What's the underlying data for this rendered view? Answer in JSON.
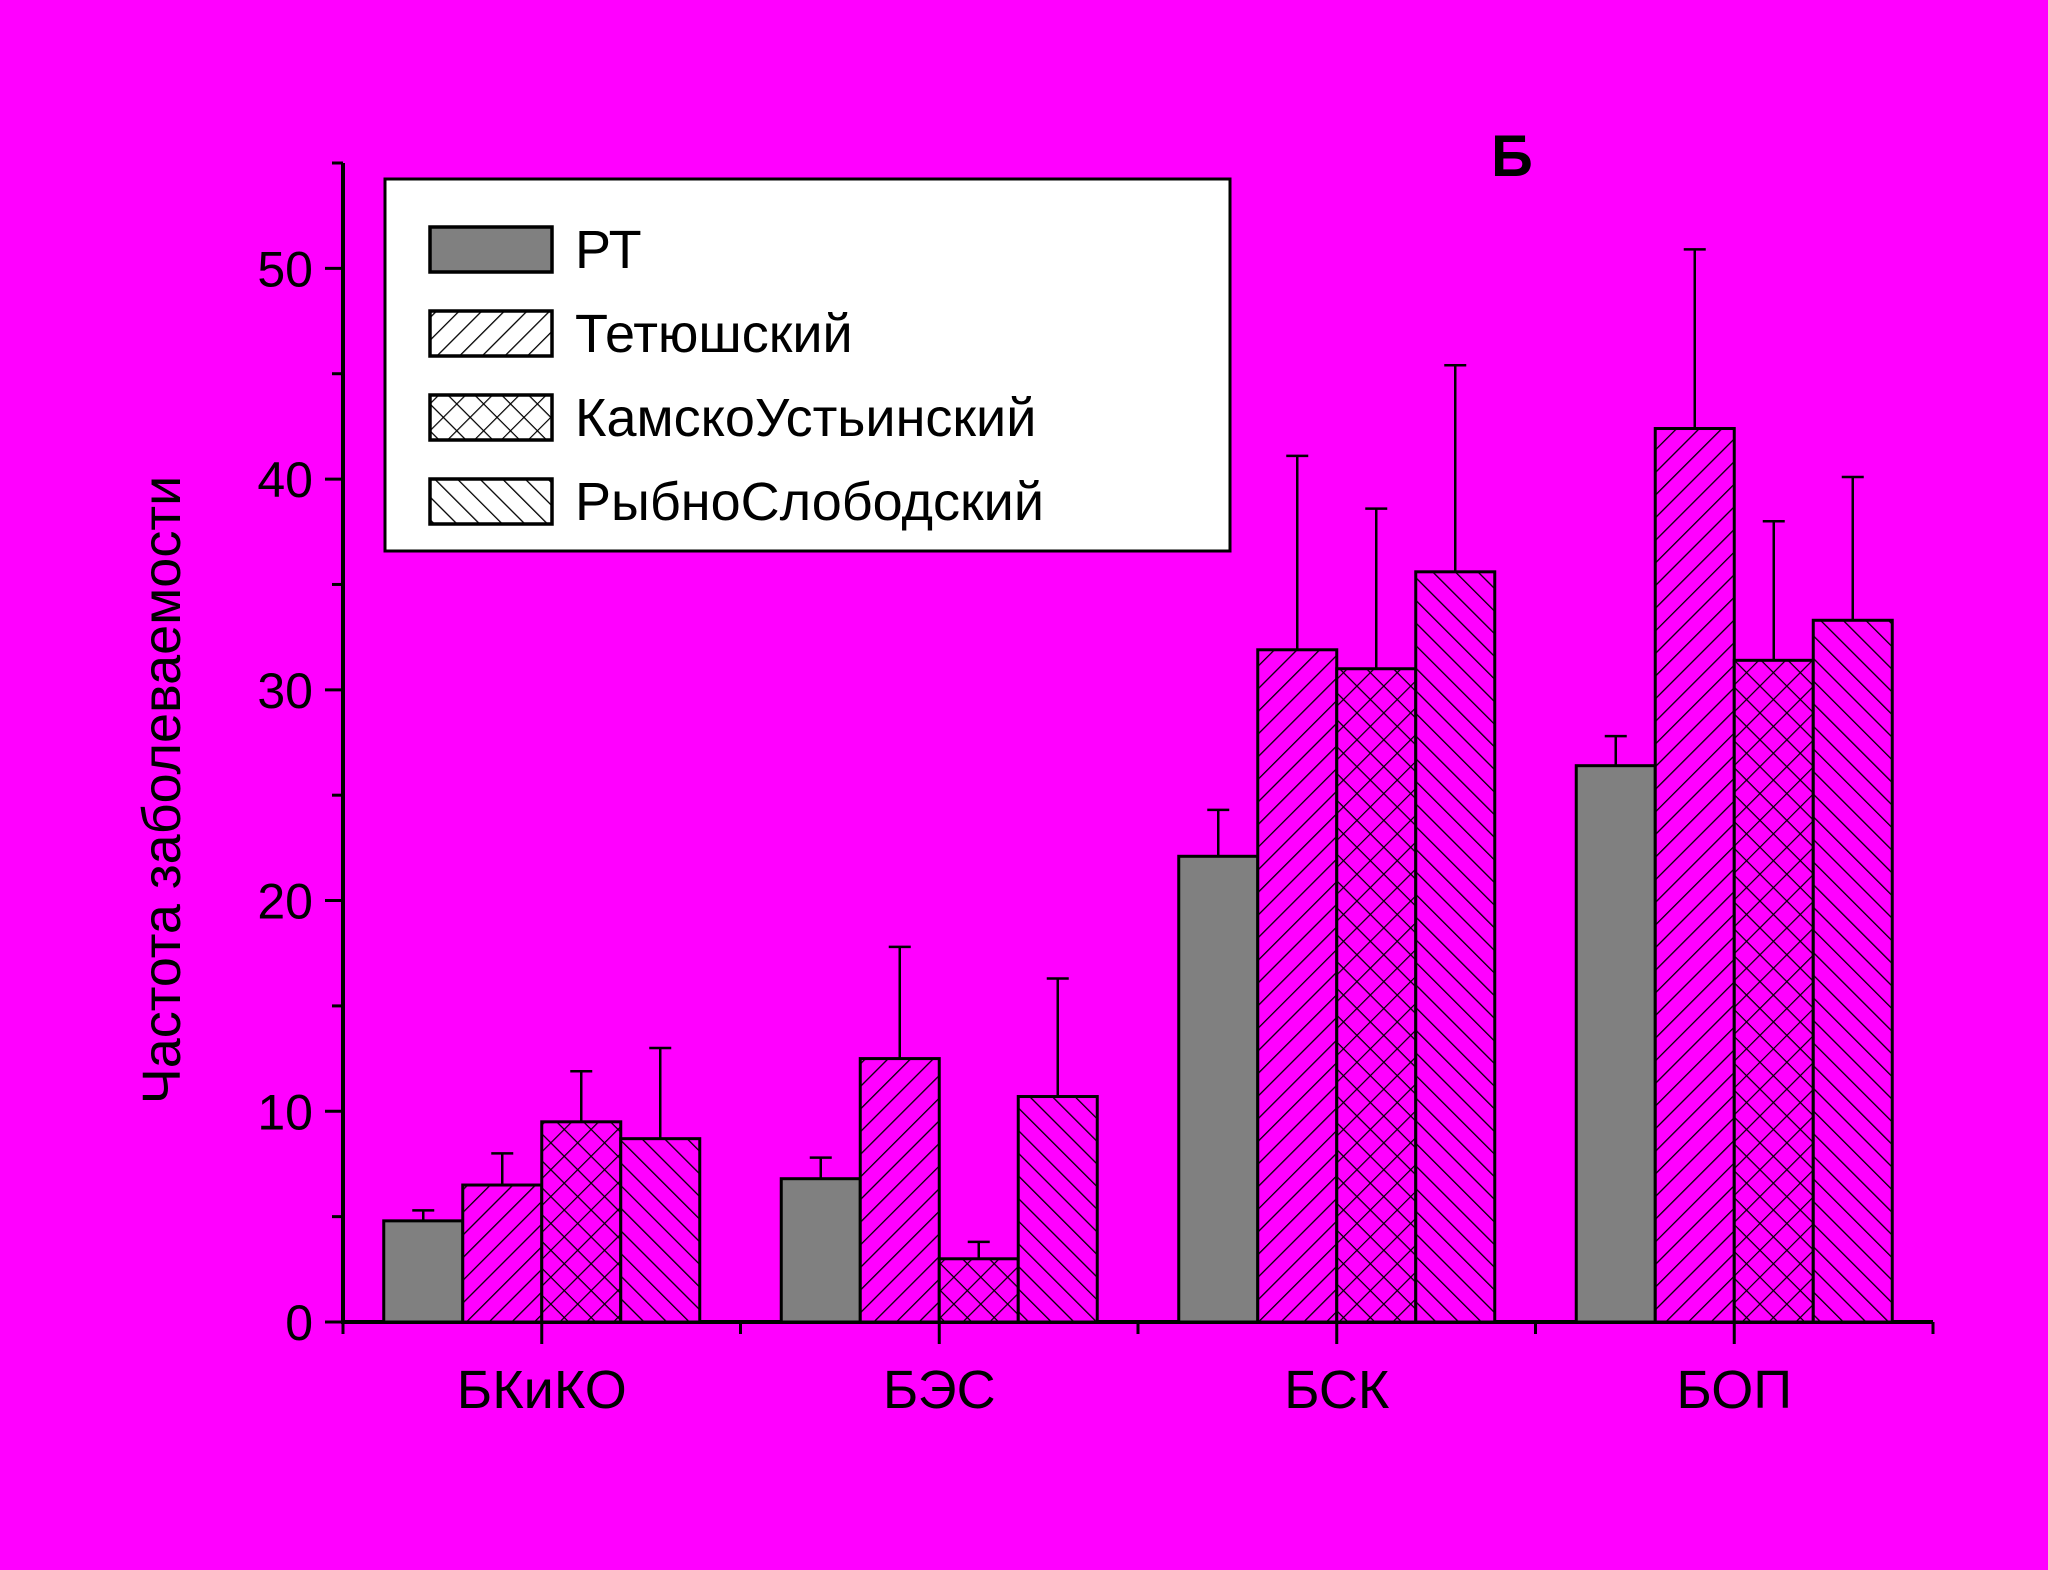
{
  "background": "#ff00ff",
  "chart_data": {
    "type": "bar",
    "title": "Б",
    "xlabel": "",
    "ylabel": "Частота  заболеваемости",
    "ylim": [
      0,
      55
    ],
    "yticks": [
      0,
      10,
      20,
      30,
      40,
      50
    ],
    "categories": [
      "БКиКО",
      "БЭС",
      "БСК",
      "БОП"
    ],
    "grid": false,
    "legend_position": "top-left",
    "series": [
      {
        "name": "РТ",
        "pattern": "solid",
        "color": "#808080",
        "values": [
          4.8,
          6.8,
          22.1,
          26.4
        ],
        "errors": [
          0.5,
          1.0,
          2.2,
          1.4
        ]
      },
      {
        "name": "Тетюшский",
        "pattern": "hatch-forward",
        "color": "#ff00ff",
        "values": [
          6.5,
          12.5,
          31.9,
          42.4
        ],
        "errors": [
          1.5,
          5.3,
          9.2,
          8.5
        ]
      },
      {
        "name": "КамскоУстьинский",
        "pattern": "crosshatch",
        "color": "#ff00ff",
        "values": [
          9.5,
          3.0,
          31.0,
          31.4
        ],
        "errors": [
          2.4,
          0.8,
          7.6,
          6.6
        ]
      },
      {
        "name": "РыбноСлободский",
        "pattern": "hatch-back",
        "color": "#ff00ff",
        "values": [
          8.7,
          10.7,
          35.6,
          33.3
        ],
        "errors": [
          4.3,
          5.6,
          9.8,
          6.8
        ]
      }
    ]
  }
}
